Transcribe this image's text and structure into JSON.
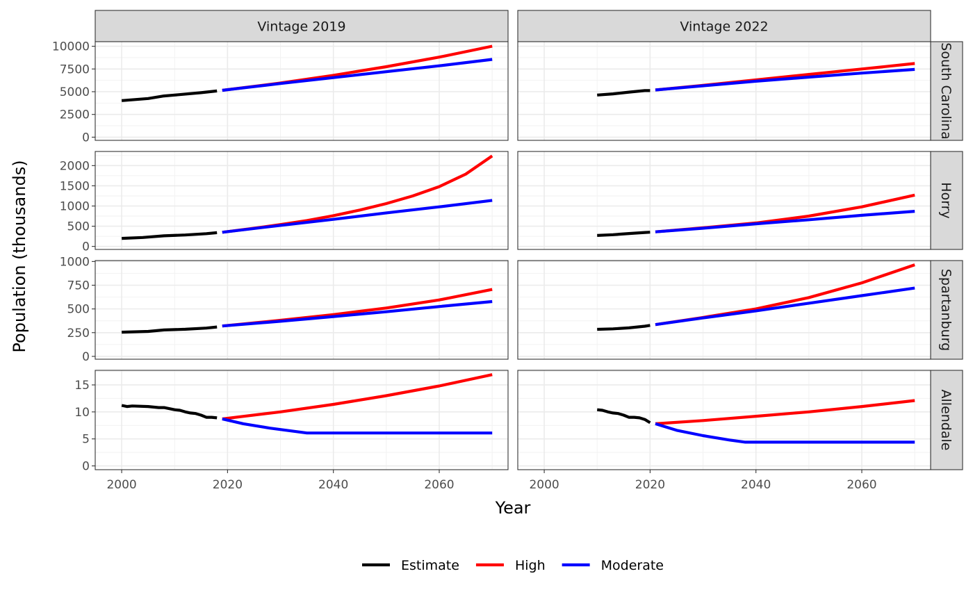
{
  "chart_data": {
    "type": "line",
    "facet_columns": [
      "Vintage 2019",
      "Vintage 2022"
    ],
    "facet_rows": [
      "South Carolina",
      "Horry",
      "Spartanburg",
      "Allendale"
    ],
    "xlabel": "Year",
    "ylabel": "Population (thousands)",
    "xlim": [
      1995,
      2073
    ],
    "x_ticks": [
      2000,
      2020,
      2040,
      2060
    ],
    "grid": true,
    "legend": {
      "position": "bottom",
      "entries": [
        {
          "name": "Estimate",
          "color": "#000000"
        },
        {
          "name": "High",
          "color": "#ff0000"
        },
        {
          "name": "Moderate",
          "color": "#0000ff"
        }
      ]
    },
    "rows": [
      {
        "name": "South Carolina",
        "ylim": [
          -350,
          10500
        ],
        "y_ticks": [
          0,
          2500,
          5000,
          7500,
          10000
        ],
        "panels": [
          {
            "column": "Vintage 2019",
            "series": [
              {
                "name": "Estimate",
                "x": [
                  2000,
                  2005,
                  2008,
                  2010,
                  2015,
                  2018
                ],
                "y": [
                  4020,
                  4250,
                  4530,
                  4630,
                  4890,
                  5080
                ]
              },
              {
                "name": "High",
                "x": [
                  2019,
                  2030,
                  2040,
                  2050,
                  2060,
                  2070
                ],
                "y": [
                  5150,
                  5950,
                  6800,
                  7750,
                  8800,
                  10000
                ]
              },
              {
                "name": "Moderate",
                "x": [
                  2019,
                  2030,
                  2040,
                  2050,
                  2060,
                  2070
                ],
                "y": [
                  5150,
                  5900,
                  6550,
                  7200,
                  7850,
                  8550
                ]
              }
            ]
          },
          {
            "column": "Vintage 2022",
            "series": [
              {
                "name": "Estimate",
                "x": [
                  2010,
                  2013,
                  2016,
                  2019,
                  2020
                ],
                "y": [
                  4630,
                  4760,
                  4950,
                  5120,
                  5120
                ]
              },
              {
                "name": "High",
                "x": [
                  2021,
                  2030,
                  2040,
                  2050,
                  2060,
                  2070
                ],
                "y": [
                  5190,
                  5700,
                  6300,
                  6900,
                  7500,
                  8100
                ]
              },
              {
                "name": "Moderate",
                "x": [
                  2021,
                  2030,
                  2040,
                  2050,
                  2060,
                  2070
                ],
                "y": [
                  5190,
                  5650,
                  6150,
                  6600,
                  7050,
                  7450
                ]
              }
            ]
          }
        ]
      },
      {
        "name": "Horry",
        "ylim": [
          -75,
          2350
        ],
        "y_ticks": [
          0,
          500,
          1000,
          1500,
          2000
        ],
        "panels": [
          {
            "column": "Vintage 2019",
            "series": [
              {
                "name": "Estimate",
                "x": [
                  2000,
                  2004,
                  2008,
                  2012,
                  2016,
                  2018
                ],
                "y": [
                  198,
                  220,
                  262,
                  282,
                  315,
                  340
                ]
              },
              {
                "name": "High",
                "x": [
                  2019,
                  2025,
                  2030,
                  2035,
                  2040,
                  2045,
                  2050,
                  2055,
                  2060,
                  2065,
                  2070
                ],
                "y": [
                  350,
                  450,
                  540,
                  640,
                  760,
                  900,
                  1060,
                  1250,
                  1480,
                  1790,
                  2240
                ]
              },
              {
                "name": "Moderate",
                "x": [
                  2019,
                  2030,
                  2040,
                  2050,
                  2060,
                  2070
                ],
                "y": [
                  350,
                  520,
                  670,
                  830,
                  980,
                  1140
                ]
              }
            ]
          },
          {
            "column": "Vintage 2022",
            "series": [
              {
                "name": "Estimate",
                "x": [
                  2010,
                  2013,
                  2016,
                  2019,
                  2020
                ],
                "y": [
                  270,
                  290,
                  318,
                  345,
                  351
                ]
              },
              {
                "name": "High",
                "x": [
                  2021,
                  2030,
                  2040,
                  2050,
                  2060,
                  2070
                ],
                "y": [
                  360,
                  460,
                  580,
                  750,
                  980,
                  1270
                ]
              },
              {
                "name": "Moderate",
                "x": [
                  2021,
                  2030,
                  2040,
                  2050,
                  2060,
                  2070
                ],
                "y": [
                  360,
                  450,
                  560,
                  660,
                  770,
                  870
                ]
              }
            ]
          }
        ]
      },
      {
        "name": "Spartanburg",
        "ylim": [
          -30,
          1010
        ],
        "y_ticks": [
          0,
          250,
          500,
          750,
          1000
        ],
        "panels": [
          {
            "column": "Vintage 2019",
            "series": [
              {
                "name": "Estimate",
                "x": [
                  2000,
                  2005,
                  2008,
                  2012,
                  2016,
                  2018
                ],
                "y": [
                  255,
                  263,
                  278,
                  286,
                  298,
                  310
                ]
              },
              {
                "name": "High",
                "x": [
                  2019,
                  2030,
                  2040,
                  2050,
                  2060,
                  2070
                ],
                "y": [
                  320,
                  380,
                  440,
                  510,
                  595,
                  705
                ]
              },
              {
                "name": "Moderate",
                "x": [
                  2019,
                  2030,
                  2040,
                  2050,
                  2060,
                  2070
                ],
                "y": [
                  320,
                  370,
                  420,
                  470,
                  525,
                  578
                ]
              }
            ]
          },
          {
            "column": "Vintage 2022",
            "series": [
              {
                "name": "Estimate",
                "x": [
                  2010,
                  2013,
                  2016,
                  2019,
                  2020
                ],
                "y": [
                  285,
                  290,
                  300,
                  318,
                  327
                ]
              },
              {
                "name": "High",
                "x": [
                  2021,
                  2030,
                  2040,
                  2050,
                  2060,
                  2070
                ],
                "y": [
                  335,
                  410,
                  500,
                  620,
                  775,
                  965
                ]
              },
              {
                "name": "Moderate",
                "x": [
                  2021,
                  2030,
                  2040,
                  2050,
                  2060,
                  2070
                ],
                "y": [
                  335,
                  405,
                  480,
                  560,
                  640,
                  720
                ]
              }
            ]
          }
        ]
      },
      {
        "name": "Allendale",
        "ylim": [
          -0.7,
          17.7
        ],
        "y_ticks": [
          0,
          5,
          10,
          15
        ],
        "panels": [
          {
            "column": "Vintage 2019",
            "series": [
              {
                "name": "Estimate",
                "x": [
                  2000,
                  2001,
                  2002,
                  2005,
                  2007,
                  2008,
                  2010,
                  2011,
                  2012,
                  2013,
                  2014,
                  2015,
                  2016,
                  2017,
                  2018
                ],
                "y": [
                  11.2,
                  11.0,
                  11.1,
                  11.0,
                  10.8,
                  10.8,
                  10.4,
                  10.3,
                  10.0,
                  9.8,
                  9.7,
                  9.4,
                  9.0,
                  9.0,
                  8.9
                ]
              },
              {
                "name": "High",
                "x": [
                  2019,
                  2030,
                  2040,
                  2050,
                  2060,
                  2070
                ],
                "y": [
                  8.7,
                  10.0,
                  11.4,
                  13.0,
                  14.8,
                  16.9
                ]
              },
              {
                "name": "Moderate",
                "x": [
                  2019,
                  2023,
                  2028,
                  2035,
                  2050,
                  2070
                ],
                "y": [
                  8.7,
                  7.8,
                  7.0,
                  6.1,
                  6.1,
                  6.1
                ]
              }
            ]
          },
          {
            "column": "Vintage 2022",
            "series": [
              {
                "name": "Estimate",
                "x": [
                  2010,
                  2011,
                  2012,
                  2013,
                  2014,
                  2015,
                  2016,
                  2017,
                  2018,
                  2019,
                  2020
                ],
                "y": [
                  10.4,
                  10.3,
                  10.0,
                  9.8,
                  9.7,
                  9.4,
                  9.0,
                  9.0,
                  8.9,
                  8.6,
                  8.0
                ]
              },
              {
                "name": "High",
                "x": [
                  2021,
                  2030,
                  2040,
                  2050,
                  2060,
                  2070
                ],
                "y": [
                  7.8,
                  8.4,
                  9.2,
                  10.0,
                  11.0,
                  12.1
                ]
              },
              {
                "name": "Moderate",
                "x": [
                  2021,
                  2025,
                  2030,
                  2035,
                  2038,
                  2050,
                  2070
                ],
                "y": [
                  7.8,
                  6.6,
                  5.6,
                  4.8,
                  4.4,
                  4.4,
                  4.4
                ]
              }
            ]
          }
        ]
      }
    ]
  }
}
